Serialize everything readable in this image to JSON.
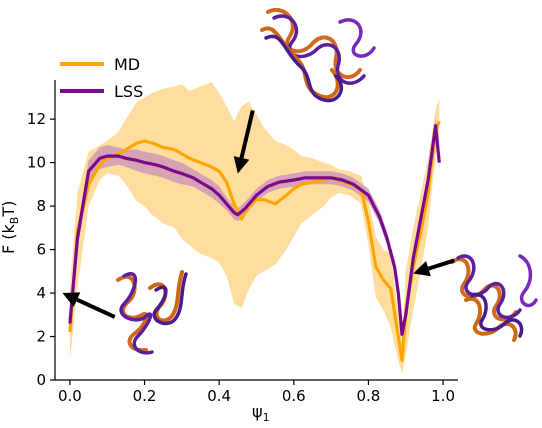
{
  "chart_data": {
    "type": "line",
    "title": "",
    "xlabel": "ψ1",
    "ylabel": "F (kBT)",
    "xlim": [
      -0.04,
      1.04
    ],
    "ylim": [
      0,
      13.8
    ],
    "xticks": [
      0.0,
      0.2,
      0.4,
      0.6,
      0.8,
      1.0
    ],
    "xtick_labels": [
      "0.0",
      "0.2",
      "0.4",
      "0.6",
      "0.8",
      "1.0"
    ],
    "yticks": [
      0,
      2,
      4,
      6,
      8,
      10,
      12
    ],
    "ytick_labels": [
      "0",
      "2",
      "4",
      "6",
      "8",
      "10",
      "12"
    ],
    "grid": false,
    "legend_position": "top-left",
    "colors": {
      "MD": "#ffa500",
      "LSS": "#7a0a8c",
      "MD_band": "#ffd27f",
      "LSS_band": "#c78fb8"
    },
    "series": [
      {
        "name": "MD",
        "x": [
          0.0,
          0.02,
          0.05,
          0.08,
          0.1,
          0.13,
          0.15,
          0.18,
          0.2,
          0.22,
          0.25,
          0.28,
          0.3,
          0.32,
          0.35,
          0.38,
          0.4,
          0.42,
          0.44,
          0.46,
          0.48,
          0.5,
          0.52,
          0.55,
          0.58,
          0.6,
          0.62,
          0.65,
          0.68,
          0.7,
          0.72,
          0.75,
          0.78,
          0.8,
          0.82,
          0.84,
          0.86,
          0.88,
          0.89,
          0.9,
          0.92,
          0.94,
          0.96,
          0.98,
          0.99
        ],
        "y": [
          2.2,
          6.8,
          9.0,
          9.9,
          10.2,
          10.4,
          10.6,
          10.9,
          11.0,
          10.9,
          10.7,
          10.6,
          10.4,
          10.2,
          10.0,
          9.8,
          9.6,
          9.1,
          8.1,
          7.4,
          8.0,
          8.3,
          8.3,
          8.1,
          8.5,
          8.8,
          9.0,
          9.1,
          9.2,
          9.3,
          9.2,
          9.0,
          8.8,
          7.3,
          5.2,
          4.6,
          4.2,
          2.0,
          0.9,
          3.1,
          5.2,
          6.8,
          8.6,
          11.5,
          11.9
        ],
        "band_low": [
          0.9,
          4.2,
          8.0,
          9.2,
          9.5,
          9.4,
          9.0,
          8.2,
          8.0,
          7.6,
          7.2,
          7.0,
          6.5,
          6.2,
          5.8,
          5.6,
          5.4,
          4.8,
          3.5,
          3.3,
          4.2,
          4.8,
          5.0,
          5.3,
          6.0,
          6.6,
          7.2,
          7.6,
          8.0,
          8.4,
          8.6,
          8.5,
          8.1,
          6.2,
          3.8,
          3.2,
          2.4,
          0.9,
          0.3,
          1.2,
          3.2,
          5.0,
          7.0,
          10.4,
          10.6
        ],
        "band_high": [
          4.2,
          8.6,
          10.5,
          10.8,
          11.0,
          11.4,
          12.0,
          12.8,
          13.0,
          13.2,
          13.4,
          13.5,
          13.6,
          13.3,
          13.5,
          13.7,
          13.2,
          12.6,
          11.9,
          12.6,
          12.8,
          12.2,
          11.6,
          11.0,
          10.8,
          10.6,
          10.3,
          10.2,
          10.0,
          9.9,
          9.7,
          9.6,
          9.4,
          8.3,
          6.6,
          6.0,
          5.8,
          3.0,
          1.8,
          5.0,
          7.0,
          8.6,
          10.2,
          12.4,
          13.0
        ]
      },
      {
        "name": "LSS",
        "x": [
          0.0,
          0.02,
          0.05,
          0.08,
          0.1,
          0.13,
          0.15,
          0.18,
          0.2,
          0.23,
          0.25,
          0.28,
          0.3,
          0.33,
          0.35,
          0.38,
          0.4,
          0.42,
          0.44,
          0.45,
          0.47,
          0.5,
          0.53,
          0.56,
          0.6,
          0.63,
          0.66,
          0.7,
          0.73,
          0.76,
          0.8,
          0.83,
          0.85,
          0.87,
          0.88,
          0.89,
          0.9,
          0.92,
          0.94,
          0.96,
          0.98,
          0.99
        ],
        "y": [
          2.6,
          6.5,
          9.6,
          10.2,
          10.3,
          10.3,
          10.2,
          10.1,
          10.0,
          9.9,
          9.8,
          9.6,
          9.5,
          9.3,
          9.1,
          8.8,
          8.5,
          8.1,
          7.7,
          7.6,
          7.9,
          8.5,
          8.9,
          9.1,
          9.2,
          9.3,
          9.3,
          9.3,
          9.2,
          9.0,
          8.5,
          7.5,
          6.5,
          5.2,
          4.0,
          2.1,
          3.0,
          5.6,
          7.4,
          9.2,
          11.7,
          10.0
        ],
        "band_low": [
          2.3,
          6.0,
          9.1,
          9.7,
          9.8,
          9.9,
          9.8,
          9.6,
          9.5,
          9.4,
          9.3,
          9.1,
          9.0,
          8.9,
          8.7,
          8.4,
          8.1,
          7.8,
          7.4,
          7.3,
          7.6,
          8.2,
          8.6,
          8.8,
          8.9,
          9.0,
          9.0,
          9.0,
          8.9,
          8.7,
          8.2,
          7.2,
          6.2,
          4.9,
          3.7,
          1.9,
          2.7,
          5.3,
          7.1,
          8.9,
          11.3,
          9.7
        ],
        "band_high": [
          2.9,
          7.0,
          10.1,
          10.7,
          10.8,
          10.7,
          10.6,
          10.6,
          10.5,
          10.4,
          10.3,
          10.1,
          10.0,
          9.7,
          9.5,
          9.2,
          8.9,
          8.4,
          8.0,
          7.9,
          8.2,
          8.8,
          9.2,
          9.4,
          9.5,
          9.6,
          9.6,
          9.6,
          9.5,
          9.3,
          8.8,
          7.8,
          6.8,
          5.5,
          4.3,
          2.3,
          3.3,
          5.9,
          7.7,
          9.5,
          12.1,
          10.3
        ]
      }
    ],
    "annotations": [
      {
        "type": "arrow",
        "from": [
          0.12,
          2.9
        ],
        "to": [
          -0.02,
          4.0
        ]
      },
      {
        "type": "arrow",
        "from": [
          0.49,
          12.4
        ],
        "to": [
          0.45,
          9.5
        ]
      },
      {
        "type": "arrow",
        "from": [
          1.03,
          5.5
        ],
        "to": [
          0.92,
          4.9
        ]
      }
    ]
  }
}
